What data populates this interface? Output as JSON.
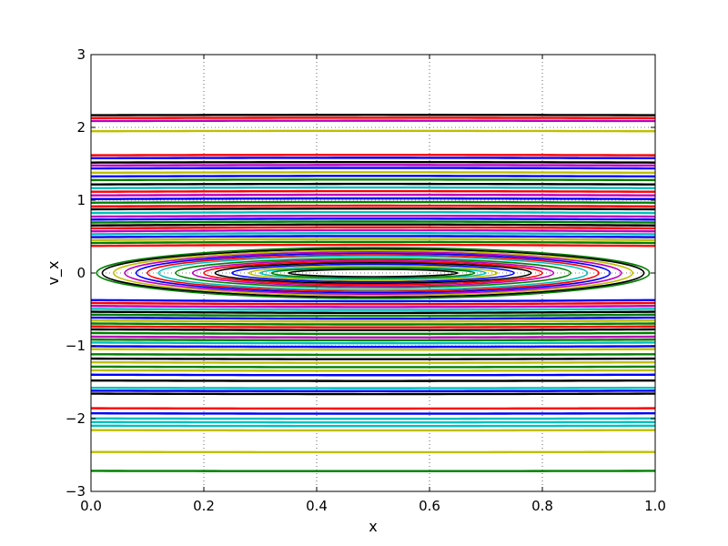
{
  "chart_data": {
    "type": "line",
    "title": "",
    "xlabel": "x",
    "ylabel": "v_x",
    "xlim": [
      0.0,
      1.0
    ],
    "ylim": [
      -3,
      3
    ],
    "x_ticks": [
      "0.0",
      "0.2",
      "0.4",
      "0.6",
      "0.8",
      "1.0"
    ],
    "y_ticks": [
      "3",
      "2",
      "1",
      "0",
      "−1",
      "−2",
      "−3"
    ],
    "grid": true,
    "legend": "none",
    "series_colors": [
      "#0000ff",
      "#008000",
      "#ff0000",
      "#00bfbf",
      "#bf00bf",
      "#bfbf00",
      "#000000"
    ],
    "closed_orbits": [
      {
        "x_min": 0.35,
        "x_max": 0.65,
        "v_max": 0.05,
        "color": "#000000"
      },
      {
        "x_min": 0.32,
        "x_max": 0.68,
        "v_max": 0.07,
        "color": "#008000"
      },
      {
        "x_min": 0.3,
        "x_max": 0.7,
        "v_max": 0.08,
        "color": "#00bfbf"
      },
      {
        "x_min": 0.28,
        "x_max": 0.72,
        "v_max": 0.1,
        "color": "#bfbf00"
      },
      {
        "x_min": 0.25,
        "x_max": 0.75,
        "v_max": 0.12,
        "color": "#0000ff"
      },
      {
        "x_min": 0.22,
        "x_max": 0.78,
        "v_max": 0.14,
        "color": "#000000"
      },
      {
        "x_min": 0.2,
        "x_max": 0.8,
        "v_max": 0.16,
        "color": "#ff0000"
      },
      {
        "x_min": 0.18,
        "x_max": 0.82,
        "v_max": 0.18,
        "color": "#bf00bf"
      },
      {
        "x_min": 0.15,
        "x_max": 0.85,
        "v_max": 0.2,
        "color": "#008000"
      },
      {
        "x_min": 0.12,
        "x_max": 0.88,
        "v_max": 0.23,
        "color": "#00bfbf"
      },
      {
        "x_min": 0.1,
        "x_max": 0.9,
        "v_max": 0.25,
        "color": "#ff0000"
      },
      {
        "x_min": 0.08,
        "x_max": 0.92,
        "v_max": 0.27,
        "color": "#0000ff"
      },
      {
        "x_min": 0.06,
        "x_max": 0.94,
        "v_max": 0.29,
        "color": "#bf00bf"
      },
      {
        "x_min": 0.04,
        "x_max": 0.96,
        "v_max": 0.31,
        "color": "#bfbf00"
      },
      {
        "x_min": 0.02,
        "x_max": 0.98,
        "v_max": 0.33,
        "color": "#000000"
      },
      {
        "x_min": 0.01,
        "x_max": 0.99,
        "v_max": 0.35,
        "color": "#008000"
      }
    ],
    "open_orbits": [
      {
        "v": 2.17,
        "color": "#000000"
      },
      {
        "v": 2.13,
        "color": "#ff0000"
      },
      {
        "v": 2.09,
        "color": "#bf00bf"
      },
      {
        "v": 1.95,
        "color": "#bfbf00"
      },
      {
        "v": 1.62,
        "color": "#ff0000"
      },
      {
        "v": 1.58,
        "color": "#0000ff"
      },
      {
        "v": 1.52,
        "color": "#000000"
      },
      {
        "v": 1.48,
        "color": "#bf00bf"
      },
      {
        "v": 1.44,
        "color": "#0000ff"
      },
      {
        "v": 1.38,
        "color": "#bfbf00"
      },
      {
        "v": 1.33,
        "color": "#0000ff"
      },
      {
        "v": 1.28,
        "color": "#008000"
      },
      {
        "v": 1.22,
        "color": "#000000"
      },
      {
        "v": 1.17,
        "color": "#00bfbf"
      },
      {
        "v": 1.12,
        "color": "#ff0000"
      },
      {
        "v": 1.07,
        "color": "#bf00bf"
      },
      {
        "v": 1.02,
        "color": "#0000ff"
      },
      {
        "v": 0.97,
        "color": "#008000"
      },
      {
        "v": 0.92,
        "color": "#ff0000"
      },
      {
        "v": 0.88,
        "color": "#000000"
      },
      {
        "v": 0.83,
        "color": "#00bfbf"
      },
      {
        "v": 0.78,
        "color": "#bf00bf"
      },
      {
        "v": 0.74,
        "color": "#0000ff"
      },
      {
        "v": 0.7,
        "color": "#008000"
      },
      {
        "v": 0.66,
        "color": "#000000"
      },
      {
        "v": 0.62,
        "color": "#ff0000"
      },
      {
        "v": 0.58,
        "color": "#bf00bf"
      },
      {
        "v": 0.54,
        "color": "#00bfbf"
      },
      {
        "v": 0.5,
        "color": "#0000ff"
      },
      {
        "v": 0.46,
        "color": "#bfbf00"
      },
      {
        "v": 0.42,
        "color": "#008000"
      },
      {
        "v": 0.38,
        "color": "#ff0000"
      },
      {
        "v": -0.38,
        "color": "#0000ff"
      },
      {
        "v": -0.42,
        "color": "#ff0000"
      },
      {
        "v": -0.46,
        "color": "#bf00bf"
      },
      {
        "v": -0.5,
        "color": "#00bfbf"
      },
      {
        "v": -0.54,
        "color": "#000000"
      },
      {
        "v": -0.58,
        "color": "#008000"
      },
      {
        "v": -0.62,
        "color": "#0000ff"
      },
      {
        "v": -0.66,
        "color": "#bfbf00"
      },
      {
        "v": -0.7,
        "color": "#008000"
      },
      {
        "v": -0.74,
        "color": "#ff0000"
      },
      {
        "v": -0.78,
        "color": "#000000"
      },
      {
        "v": -0.83,
        "color": "#008000"
      },
      {
        "v": -0.88,
        "color": "#bf00bf"
      },
      {
        "v": -0.92,
        "color": "#008000"
      },
      {
        "v": -0.96,
        "color": "#00bfbf"
      },
      {
        "v": -1.01,
        "color": "#0000ff"
      },
      {
        "v": -1.05,
        "color": "#bfbf00"
      },
      {
        "v": -1.12,
        "color": "#008000"
      },
      {
        "v": -1.18,
        "color": "#000000"
      },
      {
        "v": -1.23,
        "color": "#bfbf00"
      },
      {
        "v": -1.29,
        "color": "#008000"
      },
      {
        "v": -1.34,
        "color": "#bfbf00"
      },
      {
        "v": -1.4,
        "color": "#0000ff"
      },
      {
        "v": -1.48,
        "color": "#000000"
      },
      {
        "v": -1.58,
        "color": "#00bfbf"
      },
      {
        "v": -1.62,
        "color": "#0000ff"
      },
      {
        "v": -1.66,
        "color": "#000000"
      },
      {
        "v": -1.86,
        "color": "#ff0000"
      },
      {
        "v": -1.93,
        "color": "#0000ff"
      },
      {
        "v": -2.0,
        "color": "#00bfbf"
      },
      {
        "v": -2.05,
        "color": "#00bfbf"
      },
      {
        "v": -2.1,
        "color": "#00bfbf"
      },
      {
        "v": -2.16,
        "color": "#bfbf00"
      },
      {
        "v": -2.46,
        "color": "#bfbf00"
      },
      {
        "v": -2.72,
        "color": "#008000"
      }
    ]
  }
}
